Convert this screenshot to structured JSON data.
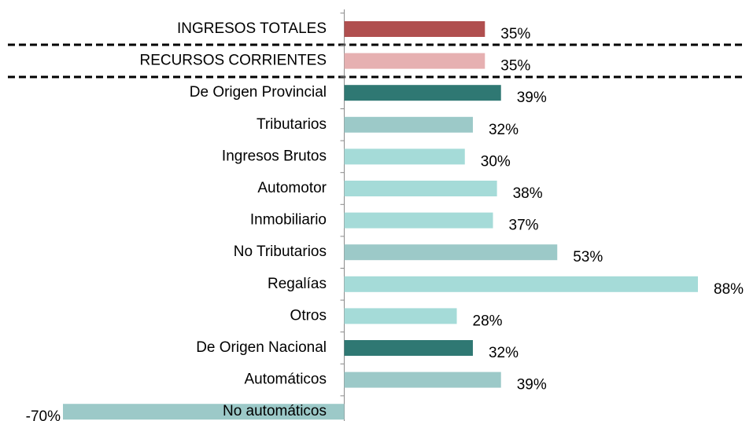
{
  "chart_data": {
    "type": "hbar",
    "categories": [
      "INGRESOS TOTALES",
      "RECURSOS CORRIENTES",
      "De Origen Provincial",
      "Tributarios",
      "Ingresos Brutos",
      "Automotor",
      "Inmobiliario",
      "No Tributarios",
      "Regalías",
      "Otros",
      "De Origen Nacional",
      "Automáticos",
      "No automáticos"
    ],
    "values": [
      35,
      35,
      39,
      32,
      30,
      38,
      37,
      53,
      88,
      28,
      32,
      39,
      -70
    ],
    "value_labels": [
      "35%",
      "35%",
      "39%",
      "32%",
      "30%",
      "38%",
      "37%",
      "53%",
      "88%",
      "28%",
      "32%",
      "39%",
      "-70%"
    ],
    "colors": [
      "#b04f4f",
      "#e6b0b1",
      "#2f7873",
      "#9cc9c8",
      "#a5dbd8",
      "#a5dbd8",
      "#a5dbd8",
      "#9cc9c8",
      "#a5dbd8",
      "#a5dbd8",
      "#2f7873",
      "#9cc9c8",
      "#9cc9c8"
    ]
  }
}
